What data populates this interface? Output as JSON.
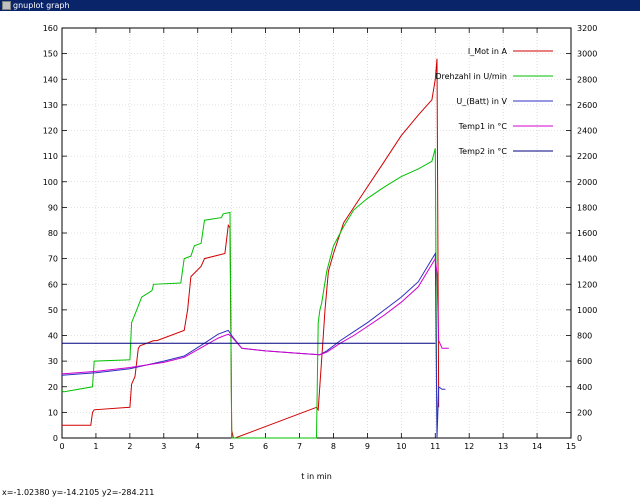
{
  "window": {
    "title": "gnuplot graph"
  },
  "status": {
    "coordinates": "x=-1.02380 y=-14.2105 y2=-284.211"
  },
  "chart_data": {
    "type": "line",
    "xlabel": "t in min",
    "ylabel": "",
    "y2label": "",
    "xlim": [
      0,
      15
    ],
    "ylim": [
      0,
      160
    ],
    "y2lim": [
      0,
      3200
    ],
    "xticks": [
      0,
      1,
      2,
      3,
      4,
      5,
      6,
      7,
      8,
      9,
      10,
      11,
      12,
      13,
      14,
      15
    ],
    "yticks": [
      0,
      10,
      20,
      30,
      40,
      50,
      60,
      70,
      80,
      90,
      100,
      110,
      120,
      130,
      140,
      150,
      160
    ],
    "y2ticks": [
      0,
      200,
      400,
      600,
      800,
      1000,
      1200,
      1400,
      1600,
      1800,
      2000,
      2200,
      2400,
      2600,
      2800,
      3000,
      3200
    ],
    "grid": true,
    "legend_position": "top-right",
    "series": [
      {
        "name": "I_Mot in A",
        "axis": "y",
        "color": "#d00000",
        "x": [
          0,
          0.05,
          0.85,
          0.9,
          0.95,
          2.0,
          2.05,
          2.15,
          2.25,
          2.3,
          2.7,
          2.8,
          3.6,
          3.7,
          3.8,
          4.1,
          4.2,
          4.8,
          4.9,
          4.95,
          5.0,
          5.05,
          5.1,
          7.5,
          7.55,
          7.7,
          7.75,
          7.85,
          8.0,
          8.3,
          8.6,
          9.0,
          9.5,
          10.0,
          10.5,
          10.9,
          11.0,
          11.05,
          11.1
        ],
        "y": [
          5,
          5,
          5,
          10,
          11,
          12,
          21,
          24,
          35,
          36,
          38,
          38,
          42,
          50,
          63,
          67,
          70,
          72,
          83,
          82,
          3,
          0,
          0,
          12,
          11,
          40,
          50,
          65,
          72,
          84,
          90,
          98,
          108,
          118,
          126,
          132,
          140,
          148,
          12
        ]
      },
      {
        "name": "Drehzahl in U/min",
        "axis": "y2",
        "color": "#00c000",
        "x": [
          0,
          0.05,
          0.9,
          0.95,
          2.0,
          2.05,
          2.2,
          2.35,
          2.65,
          2.7,
          3.5,
          3.6,
          3.8,
          3.9,
          4.1,
          4.2,
          4.7,
          4.75,
          4.95,
          5.0,
          7.5,
          7.55,
          7.6,
          7.65,
          7.8,
          8.0,
          8.3,
          8.6,
          9.0,
          9.5,
          10.0,
          10.5,
          10.9,
          11.0,
          11.05
        ],
        "y": [
          370,
          360,
          400,
          600,
          610,
          900,
          1000,
          1100,
          1150,
          1200,
          1210,
          1400,
          1420,
          1500,
          1520,
          1700,
          1720,
          1750,
          1760,
          0,
          0,
          900,
          1000,
          1050,
          1300,
          1500,
          1650,
          1780,
          1870,
          1960,
          2040,
          2100,
          2160,
          2260,
          0
        ]
      },
      {
        "name": "U_(Batt) in V",
        "axis": "y",
        "color": "#3030c0",
        "x": [
          0,
          1.0,
          2.0,
          3.0,
          3.6,
          4.2,
          4.6,
          4.9,
          5.0,
          5.3,
          6.0,
          7.0,
          7.6,
          7.8,
          8.2,
          8.6,
          9.0,
          9.5,
          10.0,
          10.5,
          11.0,
          11.05,
          11.1,
          11.2,
          11.3
        ],
        "y": [
          24.5,
          25.5,
          27,
          30,
          32,
          37,
          40.5,
          42,
          40,
          35,
          34,
          33,
          32.5,
          34,
          38,
          41.5,
          45,
          50,
          55,
          61,
          72,
          0,
          20,
          19,
          19
        ]
      },
      {
        "name": "Temp1 in °C",
        "axis": "y",
        "color": "#d000d0",
        "x": [
          0,
          1.0,
          2.0,
          3.0,
          3.6,
          4.2,
          4.6,
          4.9,
          5.0,
          5.3,
          6.0,
          7.0,
          7.6,
          7.8,
          8.2,
          8.6,
          9.0,
          9.5,
          10.0,
          10.5,
          11.0,
          11.05,
          11.1,
          11.2,
          11.4
        ],
        "y": [
          25,
          26,
          27.5,
          29.5,
          31.5,
          36,
          39,
          40.5,
          39.5,
          35,
          34,
          33,
          32.5,
          33.5,
          37,
          40,
          43.5,
          48,
          53,
          59,
          70,
          64,
          38,
          35,
          35
        ]
      },
      {
        "name": "Temp2 in °C",
        "axis": "y",
        "color": "#000080",
        "x": [
          0,
          11.0
        ],
        "y": [
          37,
          37
        ]
      }
    ]
  }
}
